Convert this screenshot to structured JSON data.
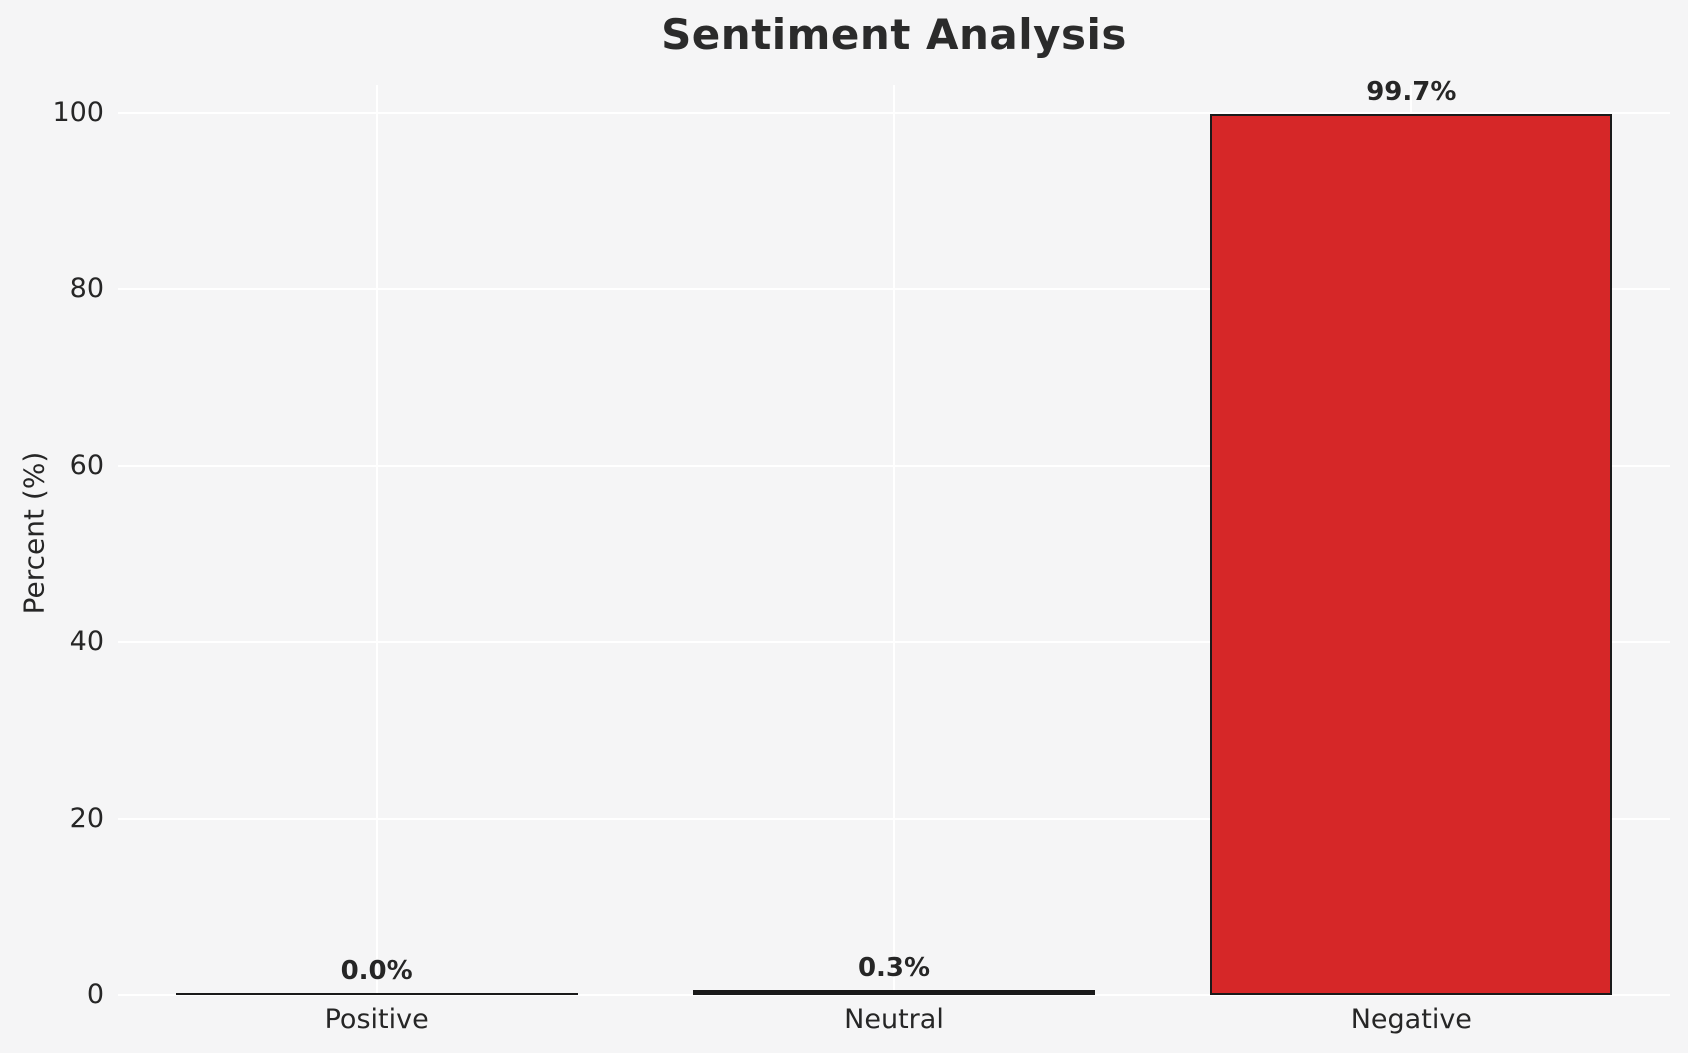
{
  "chart_data": {
    "type": "bar",
    "title": "Sentiment Analysis",
    "xlabel": "",
    "ylabel": "Percent (%)",
    "categories": [
      "Positive",
      "Neutral",
      "Negative"
    ],
    "values": [
      0.0,
      0.3,
      99.7
    ],
    "bars": [
      {
        "category": "Positive",
        "value": 0.0,
        "label": "0.0%"
      },
      {
        "category": "Neutral",
        "value": 0.3,
        "label": "0.3%"
      },
      {
        "category": "Negative",
        "value": 99.7,
        "label": "99.7%"
      }
    ],
    "yticks": [
      0,
      20,
      40,
      60,
      80,
      100
    ],
    "ylim": [
      0,
      100
    ],
    "legend": "none",
    "grid": {
      "horizontal": true,
      "vertical": true
    },
    "colors": {
      "background": "#f5f5f6",
      "gridline": "#ffffff",
      "bar_fill": "#d62728",
      "bar_edge": "#1a1a1a",
      "text": "#262626"
    }
  }
}
